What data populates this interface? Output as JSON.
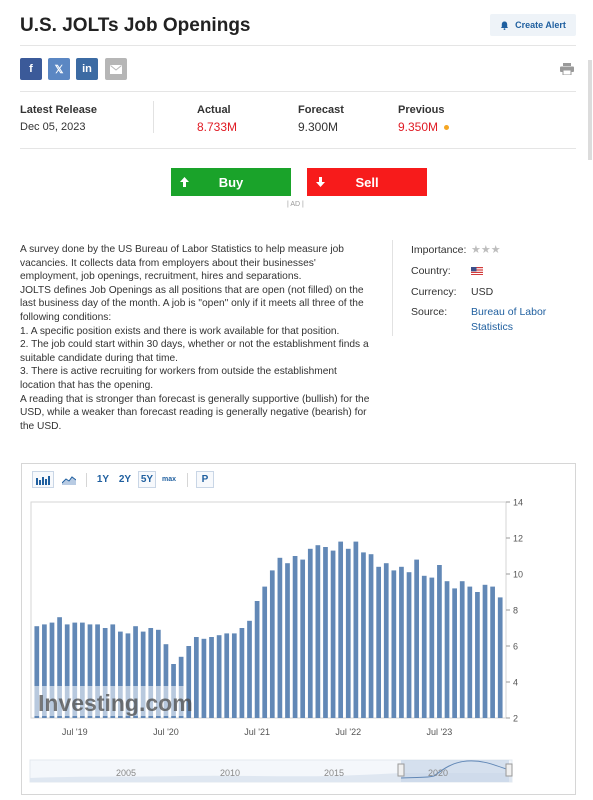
{
  "header": {
    "title": "U.S. JOLTs Job Openings",
    "create_alert": "Create Alert"
  },
  "share": {
    "facebook": "f",
    "twitter": "𝕏",
    "linkedin": "in"
  },
  "release": {
    "latest_label": "Latest Release",
    "latest_date": "Dec 05, 2023",
    "actual_label": "Actual",
    "actual_value": "8.733M",
    "forecast_label": "Forecast",
    "forecast_value": "9.300M",
    "previous_label": "Previous",
    "previous_value": "9.350M"
  },
  "trade": {
    "buy": "Buy",
    "sell": "Sell",
    "ad": "| AD |"
  },
  "description": [
    "A survey done by the US Bureau of Labor Statistics to help measure job vacancies. It collects data from employers about their businesses' employment, job openings, recruitment, hires and separations.",
    "JOLTS defines Job Openings as all positions that are open (not filled) on the last business day of the month. A job is \"open\" only if it meets all three of the following conditions:",
    "1. A specific position exists and there is work available for that position.",
    "2. The job could start within 30 days, whether or not the establishment finds a suitable candidate during that time.",
    "3. There is active recruiting for workers from outside the establishment location that has the opening.",
    "A reading that is stronger than forecast is generally supportive (bullish) for the USD, while a weaker than forecast reading is generally negative (bearish) for the USD."
  ],
  "meta": {
    "importance_label": "Importance:",
    "importance_stars": 3,
    "country_label": "Country:",
    "currency_label": "Currency:",
    "currency_value": "USD",
    "source_label": "Source:",
    "source_value_line1": "Bureau of Labor",
    "source_value_line2": "Statistics"
  },
  "chart_toolbar": {
    "range_1y": "1Y",
    "range_2y": "2Y",
    "range_5y": "5Y",
    "range_max": "max",
    "p": "P"
  },
  "chart_data": {
    "type": "bar",
    "ylim": [
      2,
      14
    ],
    "y_ticks": [
      "2",
      "4",
      "6",
      "8",
      "10",
      "12",
      "14"
    ],
    "x_tick_labels": [
      "Jul '19",
      "Jul '20",
      "Jul '21",
      "Jul '22",
      "Jul '23"
    ],
    "x_tick_index": [
      5,
      17,
      29,
      41,
      53
    ],
    "values": [
      7.1,
      7.2,
      7.3,
      7.6,
      7.2,
      7.3,
      7.3,
      7.2,
      7.2,
      7.0,
      7.2,
      6.8,
      6.7,
      7.1,
      6.8,
      7.0,
      6.9,
      6.1,
      5.0,
      5.4,
      6.0,
      6.5,
      6.4,
      6.5,
      6.6,
      6.7,
      6.7,
      7.0,
      7.4,
      8.5,
      9.3,
      10.2,
      10.9,
      10.6,
      11.0,
      10.8,
      11.4,
      11.6,
      11.5,
      11.3,
      11.8,
      11.4,
      11.8,
      11.2,
      11.1,
      10.4,
      10.6,
      10.2,
      10.4,
      10.1,
      10.8,
      9.9,
      9.8,
      10.5,
      9.6,
      9.2,
      9.6,
      9.3,
      9.0,
      9.4,
      9.3,
      8.7
    ],
    "navigator_labels": [
      "2005",
      "2010",
      "2015",
      "2020"
    ],
    "watermark": "Investing.com"
  },
  "colors": {
    "accent": "#1f5f9f",
    "bar": "#6288b6",
    "buy": "#1aa32a",
    "sell": "#f71b1b",
    "negative": "#e01b24"
  }
}
